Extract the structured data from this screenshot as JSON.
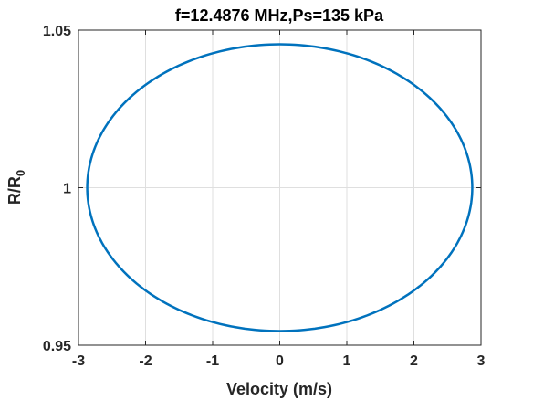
{
  "chart_data": {
    "type": "line",
    "title": "f=12.4876 MHz,Ps=135 kPa",
    "xlabel": "Velocity (m/s)",
    "ylabel_main": "R/R",
    "ylabel_sub": "0",
    "xlim": [
      -3,
      3
    ],
    "ylim": [
      0.95,
      1.05
    ],
    "xticks": [
      -3,
      -2,
      -1,
      0,
      1,
      2,
      3
    ],
    "xtick_labels": [
      "-3",
      "-2",
      "-1",
      "0",
      "1",
      "2",
      "3"
    ],
    "yticks": [
      0.95,
      1,
      1.05
    ],
    "ytick_labels": [
      "0.95",
      "1",
      "1.05"
    ],
    "grid": true,
    "series": [
      {
        "shape": "closed-orbit",
        "x_amplitude": 2.87,
        "y_center": 1.0,
        "y_amplitude": 0.0455,
        "color": "#0072bd"
      }
    ]
  }
}
